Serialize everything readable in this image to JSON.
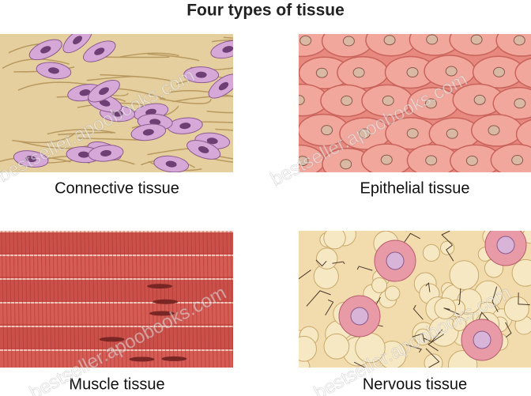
{
  "title": "Four types of tissue",
  "panels": [
    {
      "label": "Connective tissue"
    },
    {
      "label": "Epithelial tissue"
    },
    {
      "label": "Muscle tissue"
    },
    {
      "label": "Nervous tissue"
    }
  ],
  "watermark": "bestseller.apoobooks.com"
}
